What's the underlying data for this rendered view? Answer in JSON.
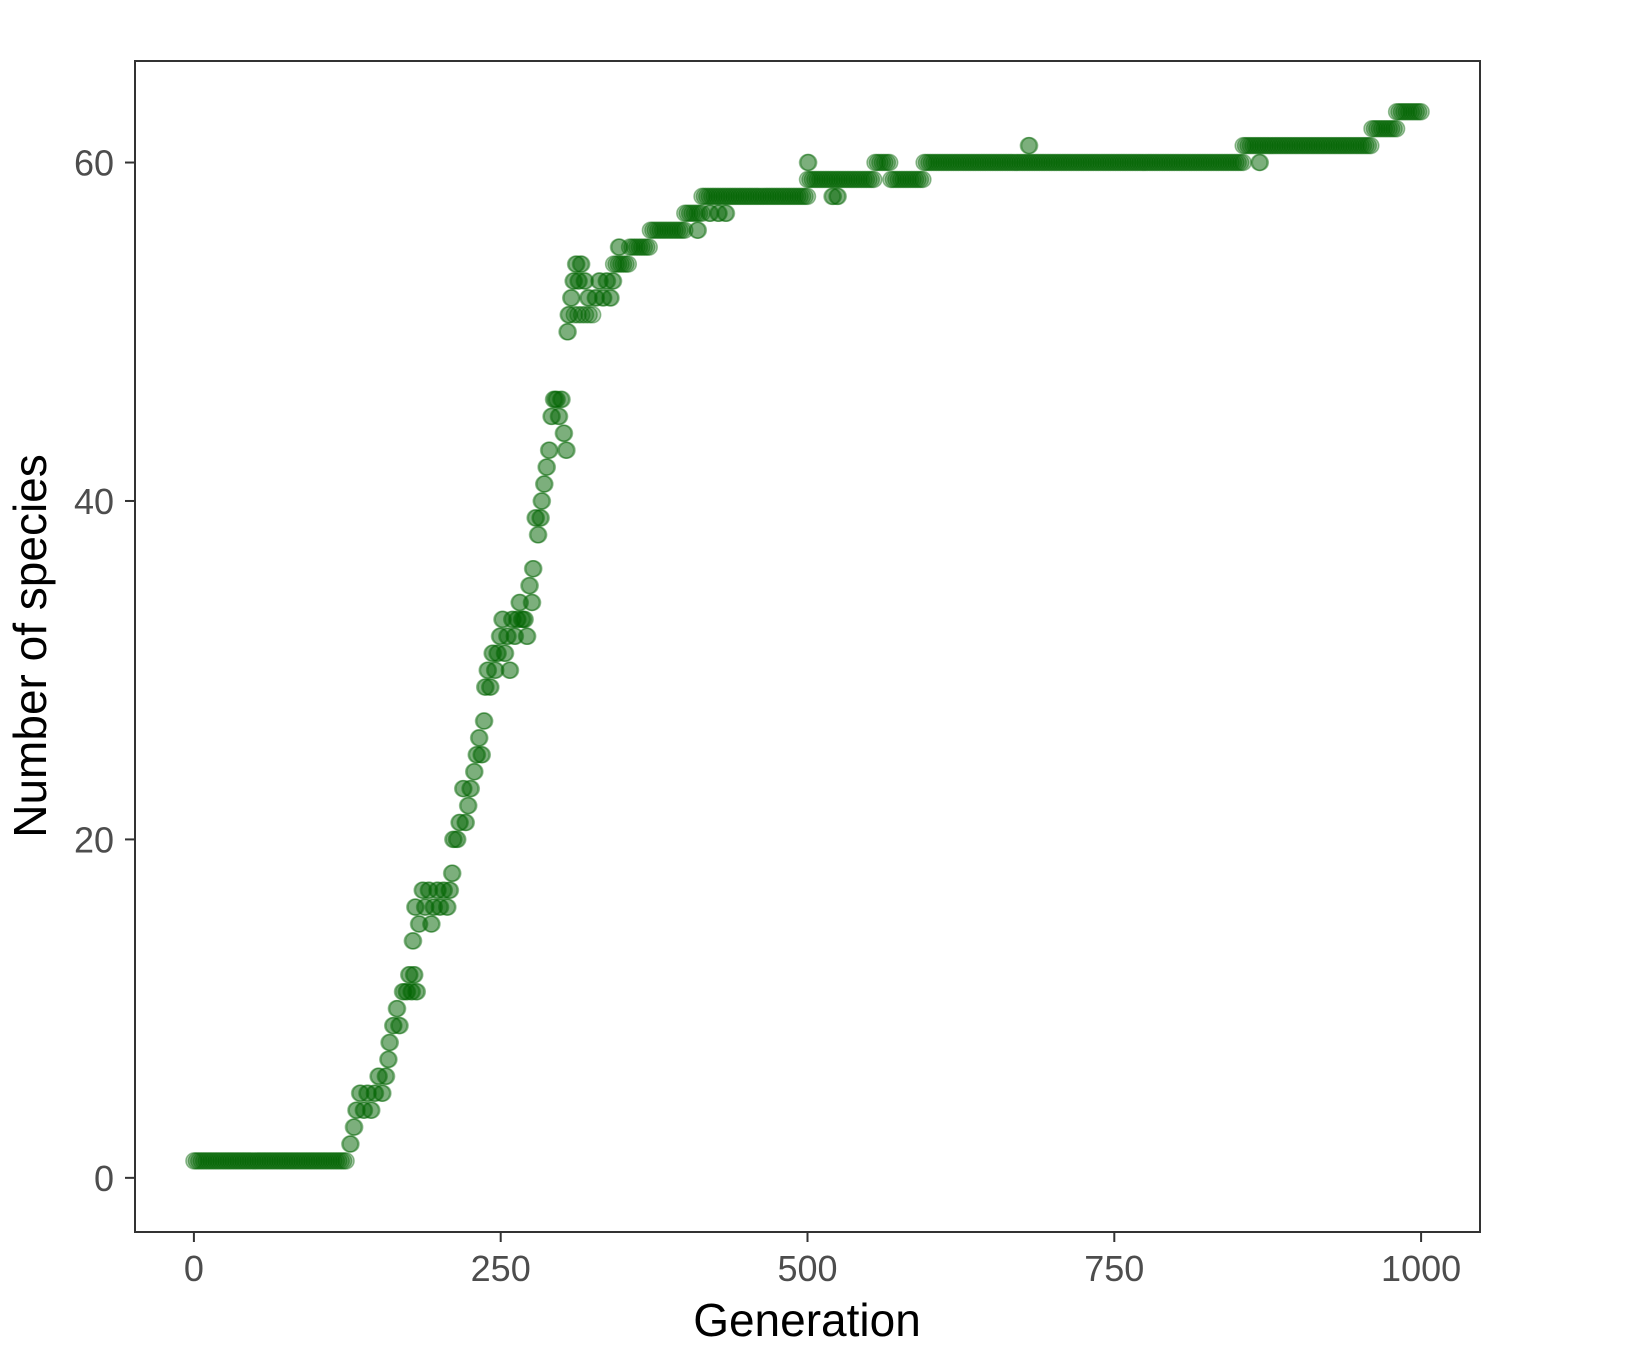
{
  "chart_data": {
    "type": "scatter",
    "title": "",
    "xlabel": "Generation",
    "ylabel": "Number of species",
    "xlim": [
      -48,
      1048
    ],
    "ylim": [
      -3.2,
      66
    ],
    "x_ticks": [
      0,
      250,
      500,
      750,
      1000
    ],
    "x_tick_labels": [
      "0",
      "250",
      "500",
      "750",
      "1000"
    ],
    "y_ticks": [
      0,
      20,
      40,
      60
    ],
    "y_tick_labels": [
      "0",
      "20",
      "40",
      "60"
    ],
    "grid": false,
    "point_color": "#006400",
    "point_opacity": 0.3,
    "series": [
      {
        "name": "species",
        "segments": [
          {
            "from": 0,
            "to": 125,
            "value": 1,
            "step": 2
          },
          {
            "from": 310,
            "to": 325,
            "value": 51,
            "step": 3
          },
          {
            "from": 342,
            "to": 355,
            "value": 54,
            "step": 2
          },
          {
            "from": 355,
            "to": 372,
            "value": 55,
            "step": 2
          },
          {
            "from": 372,
            "to": 400,
            "value": 56,
            "step": 2
          },
          {
            "from": 400,
            "to": 414,
            "value": 57,
            "step": 2
          },
          {
            "from": 414,
            "to": 500,
            "value": 58,
            "step": 2
          },
          {
            "from": 500,
            "to": 555,
            "value": 59,
            "step": 2
          },
          {
            "from": 555,
            "to": 568,
            "value": 60,
            "step": 2
          },
          {
            "from": 568,
            "to": 595,
            "value": 59,
            "step": 2
          },
          {
            "from": 595,
            "to": 855,
            "value": 60,
            "step": 2
          },
          {
            "from": 855,
            "to": 960,
            "value": 61,
            "step": 2
          },
          {
            "from": 960,
            "to": 980,
            "value": 62,
            "step": 2
          },
          {
            "from": 980,
            "to": 1000,
            "value": 63,
            "step": 2
          }
        ],
        "points": [
          [
            127,
            2
          ],
          [
            130,
            3
          ],
          [
            132,
            4
          ],
          [
            135,
            5
          ],
          [
            138,
            4
          ],
          [
            141,
            5
          ],
          [
            144,
            4
          ],
          [
            147,
            5
          ],
          [
            150,
            6
          ],
          [
            153,
            5
          ],
          [
            156,
            6
          ],
          [
            159,
            8
          ],
          [
            158,
            7
          ],
          [
            162,
            9
          ],
          [
            165,
            10
          ],
          [
            167,
            9
          ],
          [
            170,
            11
          ],
          [
            173,
            11
          ],
          [
            175,
            12
          ],
          [
            177,
            11
          ],
          [
            179,
            12
          ],
          [
            181,
            11
          ],
          [
            178,
            14
          ],
          [
            180,
            16
          ],
          [
            183,
            15
          ],
          [
            186,
            17
          ],
          [
            188,
            16
          ],
          [
            191,
            17
          ],
          [
            193,
            15
          ],
          [
            195,
            16
          ],
          [
            198,
            17
          ],
          [
            200,
            16
          ],
          [
            203,
            17
          ],
          [
            206,
            16
          ],
          [
            208,
            17
          ],
          [
            210,
            18
          ],
          [
            211,
            20
          ],
          [
            214,
            20
          ],
          [
            216,
            21
          ],
          [
            219,
            23
          ],
          [
            221,
            21
          ],
          [
            223,
            22
          ],
          [
            225,
            23
          ],
          [
            228,
            24
          ],
          [
            230,
            25
          ],
          [
            232,
            26
          ],
          [
            234,
            25
          ],
          [
            236,
            27
          ],
          [
            237,
            29
          ],
          [
            239,
            30
          ],
          [
            241,
            29
          ],
          [
            243,
            31
          ],
          [
            245,
            30
          ],
          [
            247,
            31
          ],
          [
            249,
            32
          ],
          [
            251,
            33
          ],
          [
            253,
            31
          ],
          [
            255,
            32
          ],
          [
            257,
            30
          ],
          [
            259,
            33
          ],
          [
            261,
            32
          ],
          [
            263,
            33
          ],
          [
            265,
            34
          ],
          [
            267,
            33
          ],
          [
            269,
            33
          ],
          [
            271,
            32
          ],
          [
            273,
            35
          ],
          [
            275,
            34
          ],
          [
            276,
            36
          ],
          [
            278,
            39
          ],
          [
            280,
            38
          ],
          [
            282,
            39
          ],
          [
            283,
            40
          ],
          [
            285,
            41
          ],
          [
            287,
            42
          ],
          [
            289,
            43
          ],
          [
            291,
            45
          ],
          [
            293,
            46
          ],
          [
            295,
            46
          ],
          [
            297,
            45
          ],
          [
            299,
            46
          ],
          [
            301,
            44
          ],
          [
            303,
            43
          ],
          [
            304,
            50
          ],
          [
            305,
            51
          ],
          [
            307,
            52
          ],
          [
            309,
            53
          ],
          [
            311,
            54
          ],
          [
            313,
            53
          ],
          [
            315,
            54
          ],
          [
            318,
            53
          ],
          [
            321,
            52
          ],
          [
            327,
            52
          ],
          [
            330,
            53
          ],
          [
            333,
            52
          ],
          [
            336,
            53
          ],
          [
            339,
            52
          ],
          [
            341,
            53
          ],
          [
            346,
            55
          ],
          [
            420,
            57
          ],
          [
            427,
            57
          ],
          [
            433,
            57
          ],
          [
            410,
            56
          ],
          [
            500,
            60
          ],
          [
            520,
            58
          ],
          [
            524,
            58
          ],
          [
            680,
            61
          ],
          [
            868,
            60
          ]
        ]
      }
    ]
  }
}
